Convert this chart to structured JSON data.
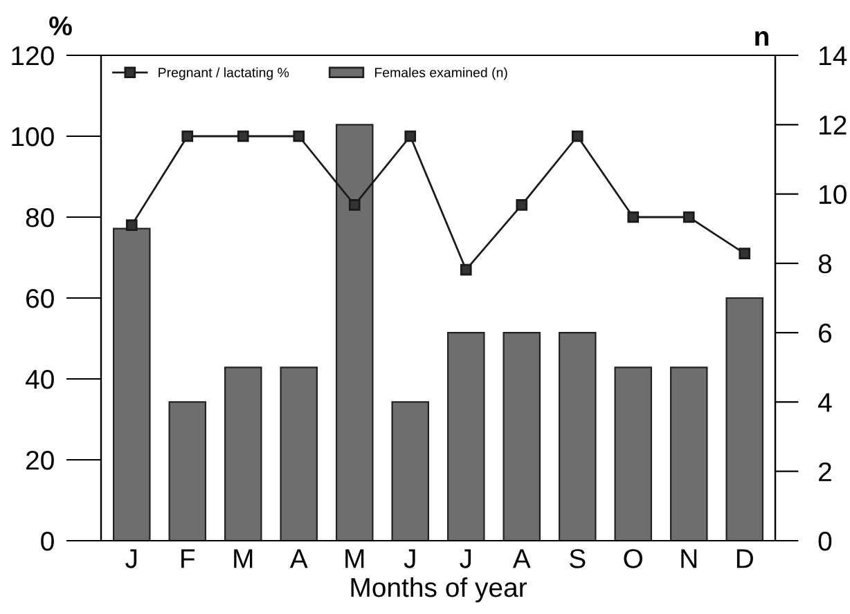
{
  "chart_data": {
    "type": "bar",
    "xlabel": "Months of year",
    "ylabel": "%",
    "y2label": "n",
    "categories": [
      "J",
      "F",
      "M",
      "A",
      "M",
      "J",
      "J",
      "A",
      "S",
      "O",
      "N",
      "D"
    ],
    "series": [
      {
        "name": "Pregnant / lactating %",
        "type": "line",
        "color": "#1a1a1a",
        "marker": "square",
        "line_style": "solid",
        "values": [
          78,
          100,
          100,
          100,
          83,
          100,
          67,
          83,
          100,
          80,
          80,
          71
        ]
      },
      {
        "name": "Females examined (n)",
        "axis": "y2",
        "color": "#6e6e6e",
        "values": [
          9,
          4,
          5,
          5,
          12,
          4,
          6,
          6,
          6,
          5,
          5,
          7
        ]
      }
    ],
    "ylim": [
      0,
      120
    ],
    "yticks": [
      0,
      20,
      40,
      60,
      80,
      100,
      120
    ],
    "y2lim": [
      0,
      14
    ],
    "y2ticks": [
      0,
      2,
      4,
      6,
      8,
      10,
      12,
      14
    ],
    "grid": false,
    "legend": "top left"
  }
}
